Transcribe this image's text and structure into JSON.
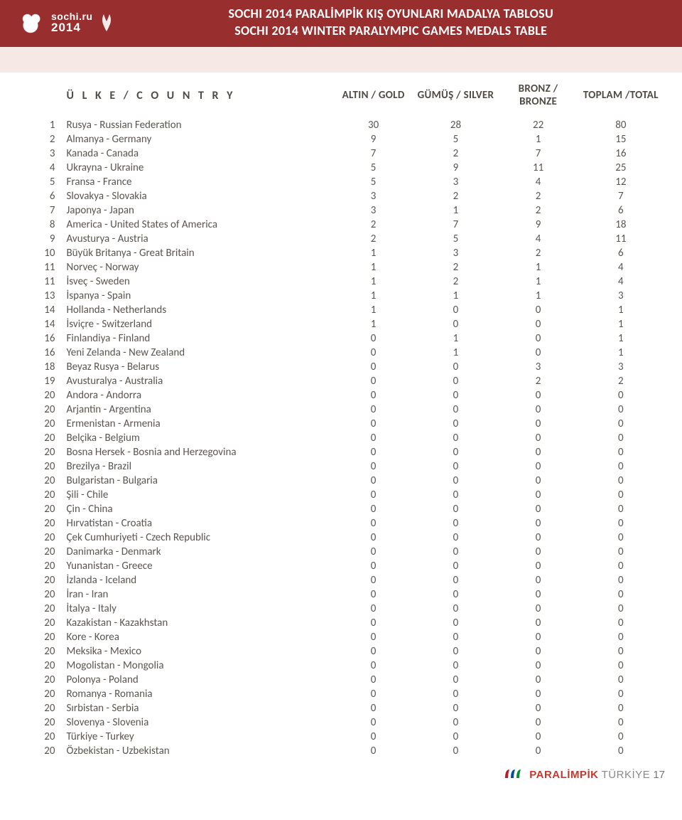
{
  "header": {
    "logo_line1": "sochi.ru",
    "logo_line2": "2014",
    "title_tr": "SOCHI 2014 PARALİMPİK KIŞ OYUNLARI MADALYA TABLOSU",
    "title_en": "SOCHI 2014 WINTER PARALYMPIC GAMES MEDALS TABLE"
  },
  "colors": {
    "header_bg": "#982e2e",
    "header_text": "#ffffff",
    "pale_strip": "#f6e8e5",
    "body_text": "#5a554f",
    "brand_red": "#c23a2e",
    "agitos_red": "#b32028",
    "agitos_blue": "#0a4aa0",
    "agitos_green": "#0e8a3a"
  },
  "table": {
    "columns": {
      "country": "Ü L K E / C O U N T R Y",
      "gold": "ALTIN / GOLD",
      "silver": "GÜMÜŞ / SILVER",
      "bronze": "BRONZ / BRONZE",
      "total": "TOPLAM /TOTAL"
    },
    "rows": [
      {
        "rank": "1",
        "country": "Rusya - Russian Federation",
        "g": "30",
        "s": "28",
        "b": "22",
        "t": "80"
      },
      {
        "rank": "2",
        "country": "Almanya - Germany",
        "g": "9",
        "s": "5",
        "b": "1",
        "t": "15"
      },
      {
        "rank": "3",
        "country": "Kanada - Canada",
        "g": "7",
        "s": "2",
        "b": "7",
        "t": "16"
      },
      {
        "rank": "4",
        "country": "Ukrayna - Ukraine",
        "g": "5",
        "s": "9",
        "b": "11",
        "t": "25"
      },
      {
        "rank": "5",
        "country": "Fransa - France",
        "g": "5",
        "s": "3",
        "b": "4",
        "t": "12"
      },
      {
        "rank": "6",
        "country": "Slovakya - Slovakia",
        "g": "3",
        "s": "2",
        "b": "2",
        "t": "7"
      },
      {
        "rank": "7",
        "country": "Japonya - Japan",
        "g": "3",
        "s": "1",
        "b": "2",
        "t": "6"
      },
      {
        "rank": "8",
        "country": "America - United States of America",
        "g": "2",
        "s": "7",
        "b": "9",
        "t": "18"
      },
      {
        "rank": "9",
        "country": "Avusturya - Austria",
        "g": "2",
        "s": "5",
        "b": "4",
        "t": "11"
      },
      {
        "rank": "10",
        "country": "Büyük Britanya - Great Britain",
        "g": "1",
        "s": "3",
        "b": "2",
        "t": "6"
      },
      {
        "rank": "11",
        "country": "Norveç - Norway",
        "g": "1",
        "s": "2",
        "b": "1",
        "t": "4"
      },
      {
        "rank": "11",
        "country": "İsveç - Sweden",
        "g": "1",
        "s": "2",
        "b": "1",
        "t": "4"
      },
      {
        "rank": "13",
        "country": "İspanya - Spain",
        "g": "1",
        "s": "1",
        "b": "1",
        "t": "3"
      },
      {
        "rank": "14",
        "country": "Hollanda - Netherlands",
        "g": "1",
        "s": "0",
        "b": "0",
        "t": "1"
      },
      {
        "rank": "14",
        "country": "İsviçre - Switzerland",
        "g": "1",
        "s": "0",
        "b": "0",
        "t": "1"
      },
      {
        "rank": "16",
        "country": "Finlandiya - Finland",
        "g": "0",
        "s": "1",
        "b": "0",
        "t": "1"
      },
      {
        "rank": "16",
        "country": "Yeni Zelanda - New Zealand",
        "g": "0",
        "s": "1",
        "b": "0",
        "t": "1"
      },
      {
        "rank": "18",
        "country": "Beyaz Rusya - Belarus",
        "g": "0",
        "s": "0",
        "b": "3",
        "t": "3"
      },
      {
        "rank": "19",
        "country": "Avusturalya - Australia",
        "g": "0",
        "s": "0",
        "b": "2",
        "t": "2"
      },
      {
        "rank": "20",
        "country": "Andora - Andorra",
        "g": "0",
        "s": "0",
        "b": "0",
        "t": "0"
      },
      {
        "rank": "20",
        "country": "Arjantin - Argentina",
        "g": "0",
        "s": "0",
        "b": "0",
        "t": "0"
      },
      {
        "rank": "20",
        "country": "Ermenistan - Armenia",
        "g": "0",
        "s": "0",
        "b": "0",
        "t": "0"
      },
      {
        "rank": "20",
        "country": "Belçika - Belgium",
        "g": "0",
        "s": "0",
        "b": "0",
        "t": "0"
      },
      {
        "rank": "20",
        "country": "Bosna Hersek - Bosnia and Herzegovina",
        "g": "0",
        "s": "0",
        "b": "0",
        "t": "0"
      },
      {
        "rank": "20",
        "country": "Brezilya - Brazil",
        "g": "0",
        "s": "0",
        "b": "0",
        "t": "0"
      },
      {
        "rank": "20",
        "country": "Bulgaristan - Bulgaria",
        "g": "0",
        "s": "0",
        "b": "0",
        "t": "0"
      },
      {
        "rank": "20",
        "country": "Şili - Chile",
        "g": "0",
        "s": "0",
        "b": "0",
        "t": "0"
      },
      {
        "rank": "20",
        "country": "Çin - China",
        "g": "0",
        "s": "0",
        "b": "0",
        "t": "0"
      },
      {
        "rank": "20",
        "country": "Hırvatistan - Croatia",
        "g": "0",
        "s": "0",
        "b": "0",
        "t": "0"
      },
      {
        "rank": "20",
        "country": "Çek Cumhuriyeti - Czech Republic",
        "g": "0",
        "s": "0",
        "b": "0",
        "t": "0"
      },
      {
        "rank": "20",
        "country": "Danimarka - Denmark",
        "g": "0",
        "s": "0",
        "b": "0",
        "t": "0"
      },
      {
        "rank": "20",
        "country": "Yunanistan - Greece",
        "g": "0",
        "s": "0",
        "b": "0",
        "t": "0"
      },
      {
        "rank": "20",
        "country": "İzlanda - Iceland",
        "g": "0",
        "s": "0",
        "b": "0",
        "t": "0"
      },
      {
        "rank": "20",
        "country": "İran - Iran",
        "g": "0",
        "s": "0",
        "b": "0",
        "t": "0"
      },
      {
        "rank": "20",
        "country": "İtalya - Italy",
        "g": "0",
        "s": "0",
        "b": "0",
        "t": "0"
      },
      {
        "rank": "20",
        "country": "Kazakistan - Kazakhstan",
        "g": "0",
        "s": "0",
        "b": "0",
        "t": "0"
      },
      {
        "rank": "20",
        "country": "Kore - Korea",
        "g": "0",
        "s": "0",
        "b": "0",
        "t": "0"
      },
      {
        "rank": "20",
        "country": "Meksika - Mexico",
        "g": "0",
        "s": "0",
        "b": "0",
        "t": "0"
      },
      {
        "rank": "20",
        "country": "Mogolistan - Mongolia",
        "g": "0",
        "s": "0",
        "b": "0",
        "t": "0"
      },
      {
        "rank": "20",
        "country": "Polonya - Poland",
        "g": "0",
        "s": "0",
        "b": "0",
        "t": "0"
      },
      {
        "rank": "20",
        "country": "Romanya - Romania",
        "g": "0",
        "s": "0",
        "b": "0",
        "t": "0"
      },
      {
        "rank": "20",
        "country": "Sırbistan - Serbia",
        "g": "0",
        "s": "0",
        "b": "0",
        "t": "0"
      },
      {
        "rank": "20",
        "country": "Slovenya - Slovenia",
        "g": "0",
        "s": "0",
        "b": "0",
        "t": "0"
      },
      {
        "rank": "20",
        "country": "Türkiye - Turkey",
        "g": "0",
        "s": "0",
        "b": "0",
        "t": "0"
      },
      {
        "rank": "20",
        "country": "Özbekistan - Uzbekistan",
        "g": "0",
        "s": "0",
        "b": "0",
        "t": "0"
      }
    ]
  },
  "footer": {
    "brand": "PARALİMPİK",
    "country": "TÜRKİYE",
    "page_no": "17"
  }
}
